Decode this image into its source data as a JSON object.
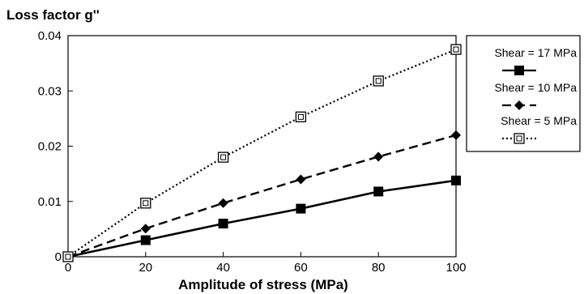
{
  "chart_data": {
    "type": "line",
    "ylabel": "Loss factor g''",
    "xlabel": "Amplitude of stress (MPa)",
    "x": [
      0,
      20,
      40,
      60,
      80,
      100
    ],
    "x_ticks": [
      "0",
      "20",
      "40",
      "60",
      "80",
      "100"
    ],
    "y_ticks": [
      "0",
      "0.01",
      "0.02",
      "0.03",
      "0.04"
    ],
    "xlim": [
      0,
      100
    ],
    "ylim": [
      0,
      0.04
    ],
    "grid": false,
    "legend_position": "right",
    "series": [
      {
        "name": "Shear = 17 MPa",
        "values": [
          0,
          0.003,
          0.006,
          0.0087,
          0.0118,
          0.0138
        ],
        "line": "solid",
        "marker": "filled-square",
        "color": "#000000"
      },
      {
        "name": "Shear = 10 MPa",
        "values": [
          0,
          0.0051,
          0.0097,
          0.014,
          0.0181,
          0.022
        ],
        "line": "dashed",
        "marker": "filled-diamond",
        "color": "#000000"
      },
      {
        "name": "Shear = 5 MPa",
        "values": [
          0,
          0.0097,
          0.018,
          0.0253,
          0.0318,
          0.0375
        ],
        "line": "dotted",
        "marker": "open-square",
        "color": "#000000"
      }
    ]
  }
}
